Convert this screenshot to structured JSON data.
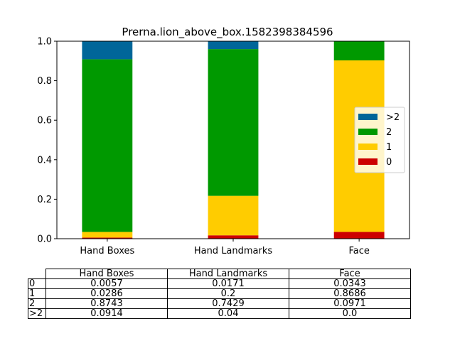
{
  "chart_data": {
    "type": "bar",
    "stacked": true,
    "title": "Prerna.lion_above_box.1582398384596",
    "categories": [
      "Hand Boxes",
      "Hand Landmarks",
      "Face"
    ],
    "ylim": [
      0,
      1.0
    ],
    "yticks": [
      "0.0",
      "0.2",
      "0.4",
      "0.6",
      "0.8",
      "1.0"
    ],
    "legend_position": "center-right",
    "series": [
      {
        "name": "0",
        "color": "#cc0000",
        "values": [
          0.0057,
          0.0171,
          0.0343
        ]
      },
      {
        "name": "1",
        "color": "#ffcc00",
        "values": [
          0.0286,
          0.2,
          0.8686
        ]
      },
      {
        "name": "2",
        "color": "#009900",
        "values": [
          0.8743,
          0.7429,
          0.0971
        ]
      },
      {
        "name": ">2",
        "color": "#006699",
        "values": [
          0.0914,
          0.04,
          0.0
        ]
      }
    ]
  },
  "table": {
    "columns": [
      "Hand Boxes",
      "Hand Landmarks",
      "Face"
    ],
    "rows": [
      {
        "label": "0",
        "cells": [
          "0.0057",
          "0.0171",
          "0.0343"
        ]
      },
      {
        "label": "1",
        "cells": [
          "0.0286",
          "0.2",
          "0.8686"
        ]
      },
      {
        "label": "2",
        "cells": [
          "0.8743",
          "0.7429",
          "0.0971"
        ]
      },
      {
        "label": ">2",
        "cells": [
          "0.0914",
          "0.04",
          "0.0"
        ]
      }
    ]
  }
}
